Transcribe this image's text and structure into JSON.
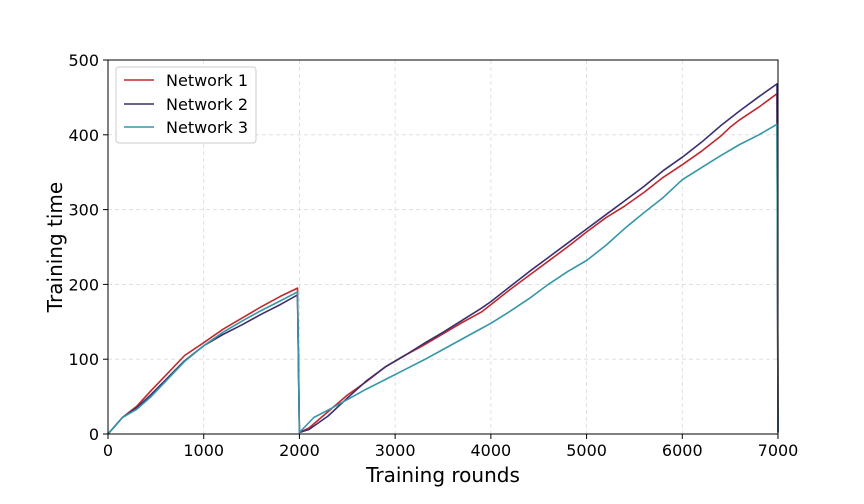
{
  "chart_data": {
    "type": "line",
    "title": "",
    "xlabel": "Training rounds",
    "ylabel": "Training time",
    "xlim": [
      0,
      7000
    ],
    "ylim": [
      0,
      500
    ],
    "xticks": [
      0,
      1000,
      2000,
      3000,
      4000,
      5000,
      6000,
      7000
    ],
    "yticks": [
      0,
      100,
      200,
      300,
      400,
      500
    ],
    "grid": true,
    "legend_position": "top-left",
    "series": [
      {
        "name": "Network 1",
        "color": "#c0282f",
        "points": [
          [
            0,
            0
          ],
          [
            150,
            22
          ],
          [
            300,
            37
          ],
          [
            450,
            58
          ],
          [
            600,
            78
          ],
          [
            800,
            105
          ],
          [
            1000,
            122
          ],
          [
            1200,
            140
          ],
          [
            1400,
            155
          ],
          [
            1600,
            170
          ],
          [
            1800,
            184
          ],
          [
            1980,
            195
          ],
          [
            2000,
            2
          ],
          [
            2100,
            8
          ],
          [
            2300,
            30
          ],
          [
            2500,
            52
          ],
          [
            2700,
            70
          ],
          [
            2900,
            90
          ],
          [
            3100,
            105
          ],
          [
            3300,
            119
          ],
          [
            3500,
            134
          ],
          [
            3700,
            149
          ],
          [
            3900,
            163
          ],
          [
            4000,
            173
          ],
          [
            4200,
            193
          ],
          [
            4400,
            212
          ],
          [
            4600,
            231
          ],
          [
            4800,
            250
          ],
          [
            5000,
            270
          ],
          [
            5200,
            289
          ],
          [
            5400,
            305
          ],
          [
            5600,
            323
          ],
          [
            5800,
            343
          ],
          [
            6000,
            360
          ],
          [
            6200,
            378
          ],
          [
            6400,
            398
          ],
          [
            6500,
            410
          ],
          [
            6600,
            420
          ],
          [
            6800,
            437
          ],
          [
            6990,
            455
          ],
          [
            7000,
            2
          ]
        ]
      },
      {
        "name": "Network 2",
        "color": "#3b2f6e",
        "points": [
          [
            0,
            0
          ],
          [
            150,
            22
          ],
          [
            300,
            35
          ],
          [
            450,
            53
          ],
          [
            600,
            72
          ],
          [
            800,
            98
          ],
          [
            1000,
            118
          ],
          [
            1200,
            133
          ],
          [
            1400,
            146
          ],
          [
            1600,
            160
          ],
          [
            1800,
            173
          ],
          [
            1980,
            186
          ],
          [
            2000,
            2
          ],
          [
            2100,
            6
          ],
          [
            2300,
            24
          ],
          [
            2500,
            48
          ],
          [
            2700,
            71
          ],
          [
            2900,
            90
          ],
          [
            3100,
            105
          ],
          [
            3300,
            121
          ],
          [
            3500,
            136
          ],
          [
            3700,
            152
          ],
          [
            3900,
            168
          ],
          [
            4000,
            177
          ],
          [
            4200,
            197
          ],
          [
            4400,
            217
          ],
          [
            4600,
            236
          ],
          [
            4800,
            255
          ],
          [
            5000,
            274
          ],
          [
            5200,
            293
          ],
          [
            5400,
            312
          ],
          [
            5600,
            331
          ],
          [
            5800,
            352
          ],
          [
            6000,
            370
          ],
          [
            6200,
            390
          ],
          [
            6400,
            412
          ],
          [
            6600,
            432
          ],
          [
            6800,
            451
          ],
          [
            6990,
            468
          ],
          [
            7000,
            2
          ]
        ]
      },
      {
        "name": "Network 3",
        "color": "#3497a8",
        "points": [
          [
            0,
            0
          ],
          [
            150,
            22
          ],
          [
            300,
            33
          ],
          [
            450,
            50
          ],
          [
            600,
            70
          ],
          [
            800,
            97
          ],
          [
            1000,
            118
          ],
          [
            1200,
            136
          ],
          [
            1400,
            151
          ],
          [
            1600,
            165
          ],
          [
            1800,
            178
          ],
          [
            1980,
            190
          ],
          [
            2000,
            2
          ],
          [
            2150,
            22
          ],
          [
            2300,
            32
          ],
          [
            2500,
            46
          ],
          [
            2700,
            60
          ],
          [
            2900,
            73
          ],
          [
            3100,
            86
          ],
          [
            3300,
            99
          ],
          [
            3500,
            113
          ],
          [
            3700,
            127
          ],
          [
            3900,
            141
          ],
          [
            4000,
            148
          ],
          [
            4200,
            164
          ],
          [
            4400,
            181
          ],
          [
            4600,
            200
          ],
          [
            4800,
            217
          ],
          [
            5000,
            232
          ],
          [
            5200,
            252
          ],
          [
            5400,
            275
          ],
          [
            5600,
            296
          ],
          [
            5800,
            316
          ],
          [
            6000,
            340
          ],
          [
            6200,
            356
          ],
          [
            6400,
            372
          ],
          [
            6600,
            387
          ],
          [
            6800,
            400
          ],
          [
            6990,
            414
          ],
          [
            7000,
            2
          ]
        ]
      }
    ]
  }
}
